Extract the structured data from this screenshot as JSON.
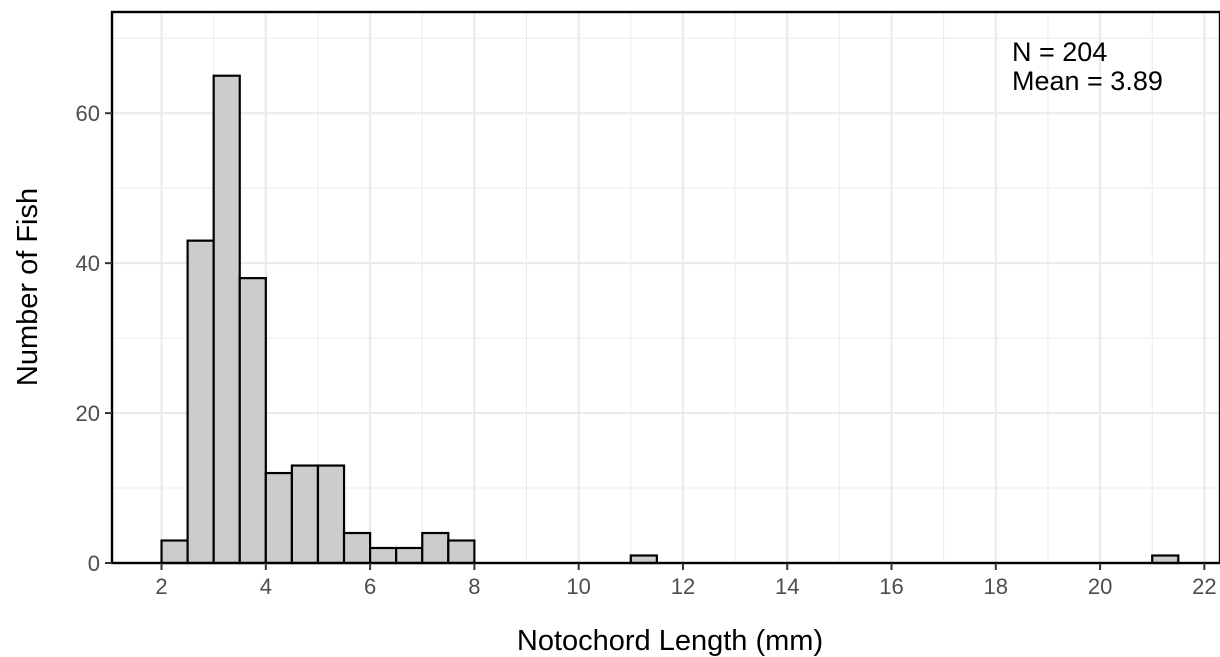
{
  "chart_data": {
    "type": "bar",
    "subtype": "histogram",
    "xlabel": "Notochord Length (mm)",
    "ylabel": "Number of Fish",
    "xlim": [
      1.05,
      22.3
    ],
    "ylim": [
      0,
      73.5
    ],
    "x_ticks": [
      2,
      4,
      6,
      8,
      10,
      12,
      14,
      16,
      18,
      20,
      22
    ],
    "y_ticks": [
      0,
      20,
      40,
      60
    ],
    "bin_width": 0.5,
    "bins": [
      {
        "start": 2.0,
        "end": 2.5,
        "count": 3
      },
      {
        "start": 2.5,
        "end": 3.0,
        "count": 43
      },
      {
        "start": 3.0,
        "end": 3.5,
        "count": 65
      },
      {
        "start": 3.5,
        "end": 4.0,
        "count": 38
      },
      {
        "start": 4.0,
        "end": 4.5,
        "count": 12
      },
      {
        "start": 4.5,
        "end": 5.0,
        "count": 13
      },
      {
        "start": 5.0,
        "end": 5.5,
        "count": 13
      },
      {
        "start": 5.5,
        "end": 6.0,
        "count": 4
      },
      {
        "start": 6.0,
        "end": 6.5,
        "count": 2
      },
      {
        "start": 6.5,
        "end": 7.0,
        "count": 2
      },
      {
        "start": 7.0,
        "end": 7.5,
        "count": 4
      },
      {
        "start": 7.5,
        "end": 8.0,
        "count": 3
      },
      {
        "start": 11.0,
        "end": 11.5,
        "count": 1
      },
      {
        "start": 21.0,
        "end": 21.5,
        "count": 1
      }
    ],
    "annotations": [
      "N = 204",
      "Mean =  3.89"
    ],
    "grid": true,
    "colors": {
      "bar_fill": "#cccccc",
      "bar_stroke": "#000000",
      "grid": "#ebebeb",
      "tick_text": "#4d4d4d"
    }
  }
}
